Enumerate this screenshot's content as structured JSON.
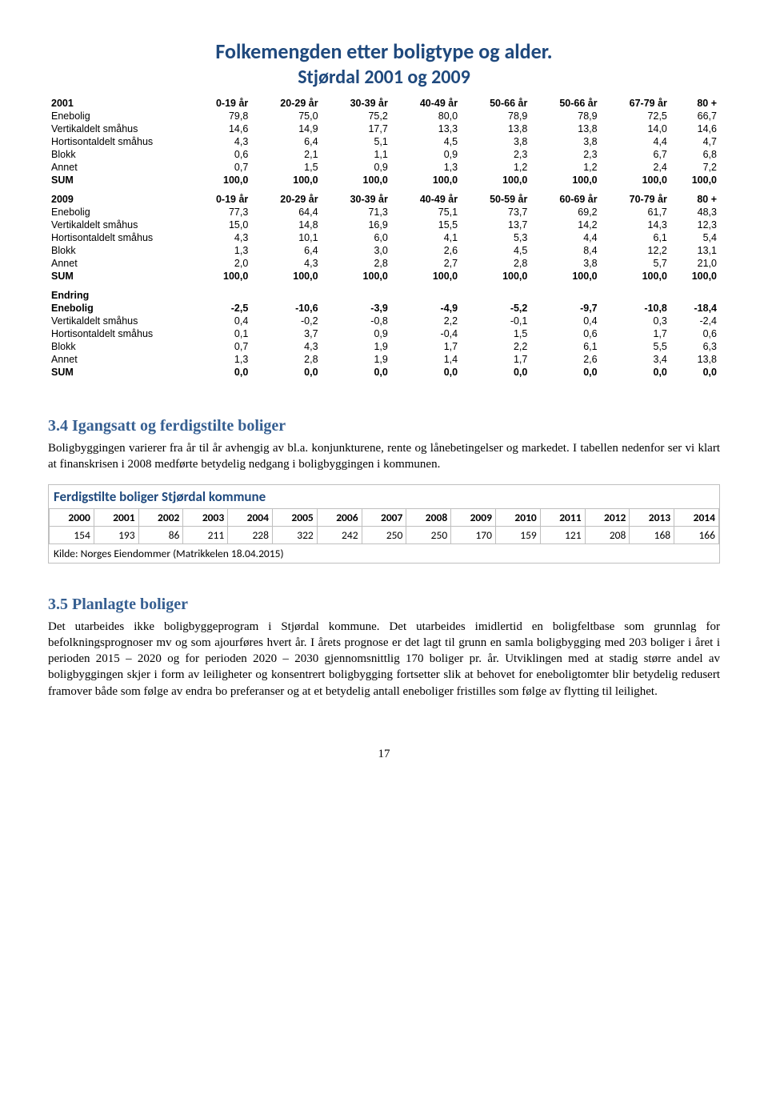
{
  "header": {
    "title": "Folkemengden etter boligtype og alder.",
    "subtitle": "Stjørdal 2001 og 2009",
    "title_color": "#1f497d",
    "title_fontsize": 26,
    "subtitle_fontsize": 24,
    "font_family": "Calibri"
  },
  "demographics_table": {
    "font_family": "Arial",
    "fontsize": 12.5,
    "columns": [
      "",
      "0-19 år",
      "20-29 år",
      "30-39 år",
      "40-49 år",
      "50-59 år",
      "60-69 år",
      "70-79 år",
      "80 +"
    ],
    "column_2001_50s_header_variant": "50-66 år",
    "column_2001_60s_header_variant": "50-66 år",
    "column_2001_70s_header_variant": "67-79 år",
    "sections": [
      {
        "label": "2001",
        "headers_override": [
          "",
          "0-19 år",
          "20-29 år",
          "30-39 år",
          "40-49 år",
          "50-66 år",
          "50-66 år",
          "67-79 år",
          "80 +"
        ],
        "rows": [
          [
            "Enebolig",
            "79,8",
            "75,0",
            "75,2",
            "80,0",
            "78,9",
            "78,9",
            "72,5",
            "66,7"
          ],
          [
            "Vertikaldelt småhus",
            "14,6",
            "14,9",
            "17,7",
            "13,3",
            "13,8",
            "13,8",
            "14,0",
            "14,6"
          ],
          [
            "Hortisontaldelt småhus",
            "4,3",
            "6,4",
            "5,1",
            "4,5",
            "3,8",
            "3,8",
            "4,4",
            "4,7"
          ],
          [
            "Blokk",
            "0,6",
            "2,1",
            "1,1",
            "0,9",
            "2,3",
            "2,3",
            "6,7",
            "6,8"
          ],
          [
            "Annet",
            "0,7",
            "1,5",
            "0,9",
            "1,3",
            "1,2",
            "1,2",
            "2,4",
            "7,2"
          ],
          [
            "SUM",
            "100,0",
            "100,0",
            "100,0",
            "100,0",
            "100,0",
            "100,0",
            "100,0",
            "100,0"
          ]
        ],
        "bold_rows": [
          5
        ]
      },
      {
        "label": "2009",
        "headers_override": [
          "",
          "0-19 år",
          "20-29 år",
          "30-39 år",
          "40-49 år",
          "50-59 år",
          "60-69 år",
          "70-79 år",
          "80 +"
        ],
        "rows": [
          [
            "Enebolig",
            "77,3",
            "64,4",
            "71,3",
            "75,1",
            "73,7",
            "69,2",
            "61,7",
            "48,3"
          ],
          [
            "Vertikaldelt småhus",
            "15,0",
            "14,8",
            "16,9",
            "15,5",
            "13,7",
            "14,2",
            "14,3",
            "12,3"
          ],
          [
            "Hortisontaldelt småhus",
            "4,3",
            "10,1",
            "6,0",
            "4,1",
            "5,3",
            "4,4",
            "6,1",
            "5,4"
          ],
          [
            "Blokk",
            "1,3",
            "6,4",
            "3,0",
            "2,6",
            "4,5",
            "8,4",
            "12,2",
            "13,1"
          ],
          [
            "Annet",
            "2,0",
            "4,3",
            "2,8",
            "2,7",
            "2,8",
            "3,8",
            "5,7",
            "21,0"
          ],
          [
            "SUM",
            "100,0",
            "100,0",
            "100,0",
            "100,0",
            "100,0",
            "100,0",
            "100,0",
            "100,0"
          ]
        ],
        "bold_rows": [
          5
        ]
      },
      {
        "label": "Endring",
        "headers_override": null,
        "rows": [
          [
            "Enebolig",
            "-2,5",
            "-10,6",
            "-3,9",
            "-4,9",
            "-5,2",
            "-9,7",
            "-10,8",
            "-18,4"
          ],
          [
            "Vertikaldelt småhus",
            "0,4",
            "-0,2",
            "-0,8",
            "2,2",
            "-0,1",
            "0,4",
            "0,3",
            "-2,4"
          ],
          [
            "Hortisontaldelt småhus",
            "0,1",
            "3,7",
            "0,9",
            "-0,4",
            "1,5",
            "0,6",
            "1,7",
            "0,6"
          ],
          [
            "Blokk",
            "0,7",
            "4,3",
            "1,9",
            "1,7",
            "2,2",
            "6,1",
            "5,5",
            "6,3"
          ],
          [
            "Annet",
            "1,3",
            "2,8",
            "1,9",
            "1,4",
            "1,7",
            "2,6",
            "3,4",
            "13,8"
          ],
          [
            "SUM",
            "0,0",
            "0,0",
            "0,0",
            "0,0",
            "0,0",
            "0,0",
            "0,0",
            "0,0"
          ]
        ],
        "bold_rows": [
          0,
          5
        ]
      }
    ]
  },
  "section_34": {
    "heading": "3.4 Igangsatt og ferdigstilte boliger",
    "heading_color": "#365f91",
    "paragraph": "Boligbyggingen varierer fra år til år avhengig av bl.a. konjunkturene, rente og lånebetingelser og markedet. I tabellen nedenfor ser vi klart at finanskrisen i 2008 medførte betydelig nedgang i boligbyggingen i kommunen."
  },
  "ferdigstilte": {
    "title": "Ferdigstilte boliger Stjørdal kommune",
    "title_color": "#1f497d",
    "border_color": "#bfbfbf",
    "years": [
      "2000",
      "2001",
      "2002",
      "2003",
      "2004",
      "2005",
      "2006",
      "2007",
      "2008",
      "2009",
      "2010",
      "2011",
      "2012",
      "2013",
      "2014"
    ],
    "values": [
      "154",
      "193",
      "86",
      "211",
      "228",
      "322",
      "242",
      "250",
      "250",
      "170",
      "159",
      "121",
      "208",
      "168",
      "166"
    ],
    "source": "Kilde: Norges Eiendommer (Matrikkelen 18.04.2015)"
  },
  "section_35": {
    "heading": "3.5 Planlagte boliger",
    "heading_color": "#365f91",
    "paragraph": "Det utarbeides ikke boligbyggeprogram i Stjørdal kommune. Det utarbeides imidlertid en boligfeltbase som grunnlag for befolkningsprognoser mv og som ajourføres hvert år. I årets prognose er det lagt til grunn en samla boligbygging med 203 boliger i året i perioden 2015 – 2020 og for perioden 2020 – 2030 gjennomsnittlig 170 boliger pr. år. Utviklingen med at stadig større andel av boligbyggingen skjer i form av leiligheter og konsentrert boligbygging fortsetter slik at behovet for eneboligtomter blir betydelig redusert framover både som følge av endra bo preferanser og at et betydelig antall eneboliger fristilles som følge av flytting til leilighet."
  },
  "page_number": "17"
}
